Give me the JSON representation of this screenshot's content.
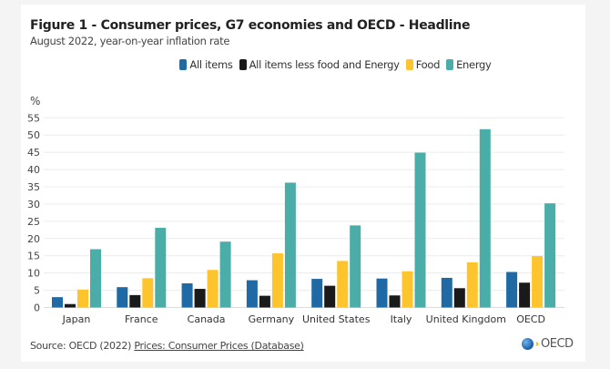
{
  "chart_data": {
    "type": "bar",
    "title": "Figure 1 - Consumer prices, G7 economies and OECD - Headline",
    "subtitle": "August 2022, year-on-year inflation rate",
    "xlabel": "",
    "ylabel": "%",
    "ylim": [
      0,
      55
    ],
    "yticks": [
      0,
      5,
      10,
      15,
      20,
      25,
      30,
      35,
      40,
      45,
      50,
      55
    ],
    "grid": true,
    "legend_position": "top-center",
    "categories": [
      "Japan",
      "France",
      "Canada",
      "Germany",
      "United States",
      "Italy",
      "United Kingdom",
      "OECD"
    ],
    "series": [
      {
        "name": "All items",
        "color": "#1f6aa5",
        "values": [
          3.0,
          5.9,
          7.0,
          7.9,
          8.3,
          8.4,
          8.6,
          10.3
        ]
      },
      {
        "name": "All items less food and Energy",
        "color": "#1a1a1a",
        "values": [
          1.0,
          3.6,
          5.4,
          3.4,
          6.3,
          3.5,
          5.6,
          7.2
        ]
      },
      {
        "name": "Food",
        "color": "#fdc42e",
        "values": [
          5.2,
          8.5,
          10.9,
          15.7,
          13.5,
          10.5,
          13.1,
          14.9
        ]
      },
      {
        "name": "Energy",
        "color": "#4bada8",
        "values": [
          16.9,
          23.1,
          19.1,
          36.2,
          23.8,
          44.9,
          51.7,
          30.2
        ]
      }
    ]
  },
  "source": {
    "prefix": "Source: OECD (2022) ",
    "link_text": "Prices: Consumer Prices (Database)"
  },
  "logo": {
    "text": "OECD"
  }
}
